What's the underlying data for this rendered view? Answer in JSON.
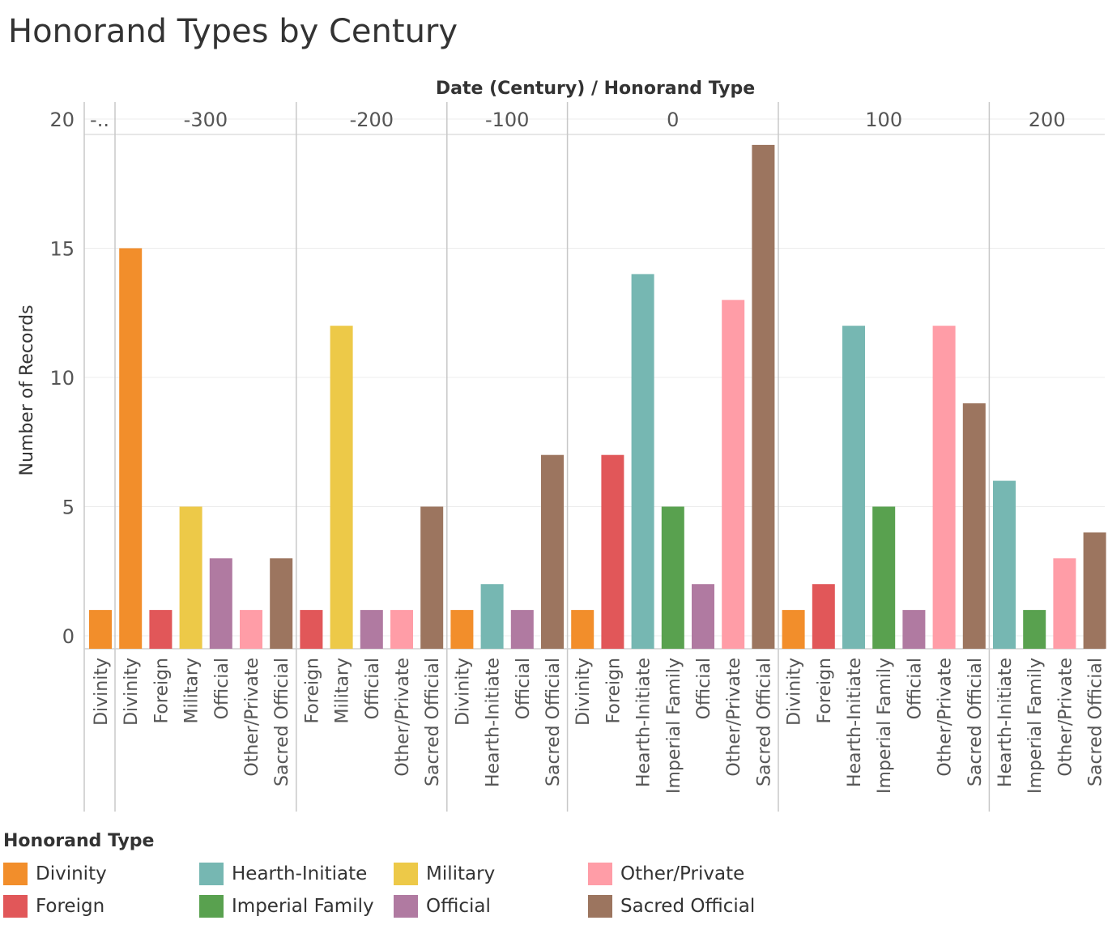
{
  "title": "Honorand Types by Century",
  "chart_data": {
    "type": "bar",
    "title": "Honorand Types by Century",
    "header_label": "Date (Century)  /  Honorand Type",
    "ylabel": "Number of Records",
    "ylim": [
      0,
      20
    ],
    "yticks": [
      0,
      5,
      10,
      15,
      20
    ],
    "grid": true,
    "legend_position": "bottom",
    "groups": [
      {
        "century": "-..",
        "bars": [
          {
            "type": "Divinity",
            "value": 1
          }
        ]
      },
      {
        "century": "-300",
        "bars": [
          {
            "type": "Divinity",
            "value": 15
          },
          {
            "type": "Foreign",
            "value": 1
          },
          {
            "type": "Military",
            "value": 5
          },
          {
            "type": "Official",
            "value": 3
          },
          {
            "type": "Other/Private",
            "value": 1
          },
          {
            "type": "Sacred Official",
            "value": 3
          }
        ]
      },
      {
        "century": "-200",
        "bars": [
          {
            "type": "Foreign",
            "value": 1
          },
          {
            "type": "Military",
            "value": 12
          },
          {
            "type": "Official",
            "value": 1
          },
          {
            "type": "Other/Private",
            "value": 1
          },
          {
            "type": "Sacred Official",
            "value": 5
          }
        ]
      },
      {
        "century": "-100",
        "bars": [
          {
            "type": "Divinity",
            "value": 1
          },
          {
            "type": "Hearth-Initiate",
            "value": 2
          },
          {
            "type": "Official",
            "value": 1
          },
          {
            "type": "Sacred Official",
            "value": 7
          }
        ]
      },
      {
        "century": "0",
        "bars": [
          {
            "type": "Divinity",
            "value": 1
          },
          {
            "type": "Foreign",
            "value": 7
          },
          {
            "type": "Hearth-Initiate",
            "value": 14
          },
          {
            "type": "Imperial Family",
            "value": 5
          },
          {
            "type": "Official",
            "value": 2
          },
          {
            "type": "Other/Private",
            "value": 13
          },
          {
            "type": "Sacred Official",
            "value": 19
          }
        ]
      },
      {
        "century": "100",
        "bars": [
          {
            "type": "Divinity",
            "value": 1
          },
          {
            "type": "Foreign",
            "value": 2
          },
          {
            "type": "Hearth-Initiate",
            "value": 12
          },
          {
            "type": "Imperial Family",
            "value": 5
          },
          {
            "type": "Official",
            "value": 1
          },
          {
            "type": "Other/Private",
            "value": 12
          },
          {
            "type": "Sacred Official",
            "value": 9
          }
        ]
      },
      {
        "century": "200",
        "bars": [
          {
            "type": "Hearth-Initiate",
            "value": 6
          },
          {
            "type": "Imperial Family",
            "value": 1
          },
          {
            "type": "Other/Private",
            "value": 3
          },
          {
            "type": "Sacred Official",
            "value": 4
          }
        ]
      }
    ]
  },
  "legend": {
    "title": "Honorand Type",
    "items": [
      {
        "label": "Divinity",
        "color": "#f28e2b"
      },
      {
        "label": "Foreign",
        "color": "#e15759"
      },
      {
        "label": "Hearth-Initiate",
        "color": "#76b7b2"
      },
      {
        "label": "Imperial Family",
        "color": "#59a14f"
      },
      {
        "label": "Military",
        "color": "#edc948"
      },
      {
        "label": "Official",
        "color": "#b07aa1"
      },
      {
        "label": "Other/Private",
        "color": "#ff9da7"
      },
      {
        "label": "Sacred Official",
        "color": "#9c755f"
      }
    ]
  }
}
